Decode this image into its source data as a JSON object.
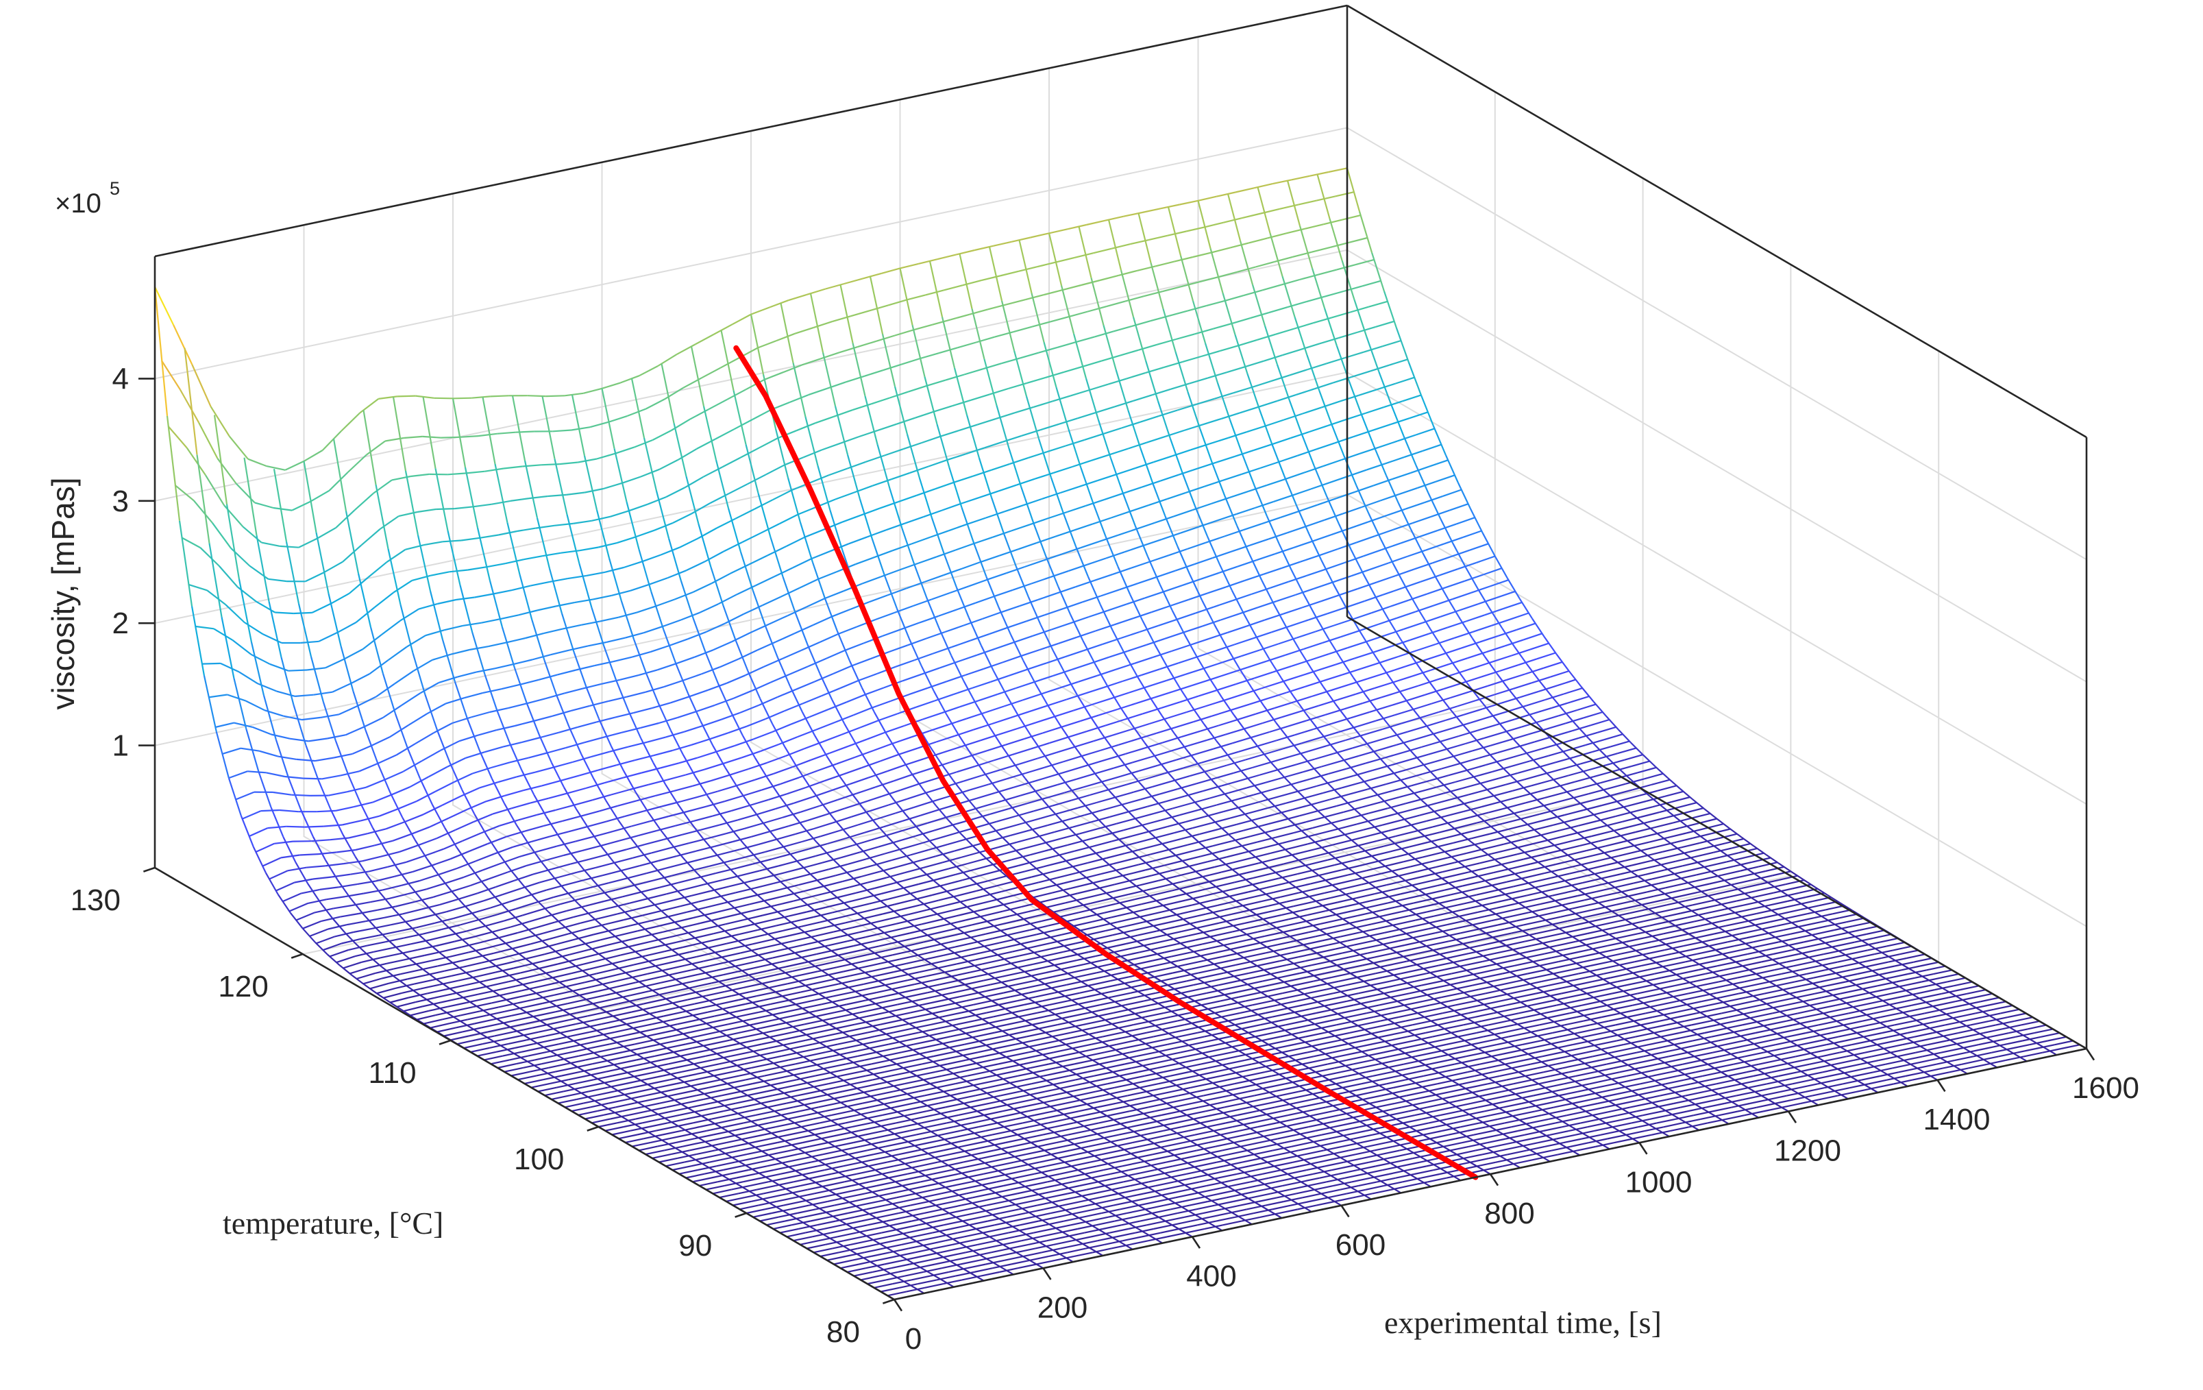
{
  "chart_data": {
    "type": "surface3d",
    "title": "",
    "xlabel": "experimental time, [s]",
    "ylabel": "temperature, [°C]",
    "zlabel": "viscosity, [mPas]",
    "z_exponent_base": "×10",
    "z_exponent_power": "5",
    "xlim": [
      0,
      1600
    ],
    "ylim": [
      80,
      130
    ],
    "zlim": [
      0,
      5
    ],
    "x_ticks": [
      "0",
      "200",
      "400",
      "600",
      "800",
      "1000",
      "1200",
      "1400",
      "1600"
    ],
    "y_ticks": [
      "80",
      "90",
      "100",
      "110",
      "120",
      "130"
    ],
    "z_ticks": [
      "1",
      "2",
      "3",
      "4"
    ],
    "x_tick_values": [
      0,
      200,
      400,
      600,
      800,
      1000,
      1200,
      1400,
      1600
    ],
    "y_tick_values": [
      80,
      90,
      100,
      110,
      120,
      130
    ],
    "z_tick_values": [
      1,
      2,
      3,
      4
    ],
    "grid": true,
    "colormap": "parula",
    "surface_profile_at_130C": {
      "time_s": [
        0,
        40,
        80,
        120,
        170,
        220,
        270,
        300,
        340,
        380,
        420,
        460,
        500,
        540,
        580,
        620,
        660,
        700,
        750,
        800,
        850,
        900,
        950,
        1000,
        1100,
        1200,
        1300,
        1400,
        1500,
        1600
      ],
      "viscosity_1e5_mPas": [
        4.75,
        4.2,
        3.6,
        3.2,
        3.02,
        3.1,
        3.35,
        3.45,
        3.43,
        3.35,
        3.3,
        3.27,
        3.22,
        3.16,
        3.14,
        3.16,
        3.2,
        3.3,
        3.4,
        3.5,
        3.55,
        3.58,
        3.6,
        3.62,
        3.64,
        3.65,
        3.66,
        3.66,
        3.67,
        3.67
      ]
    },
    "highlighted_curve": {
      "color": "#ff0000",
      "time_s": [
        780,
        780,
        780,
        780,
        780,
        780,
        780,
        780,
        780,
        780,
        780,
        780
      ],
      "temperature_C": [
        80,
        90,
        100,
        105,
        110,
        113,
        116,
        119,
        122,
        125,
        128,
        130
      ],
      "viscosity_1e5_mPas": [
        0,
        0,
        0.02,
        0.06,
        0.15,
        0.35,
        0.7,
        1.2,
        1.85,
        2.45,
        3.0,
        3.25
      ]
    }
  }
}
